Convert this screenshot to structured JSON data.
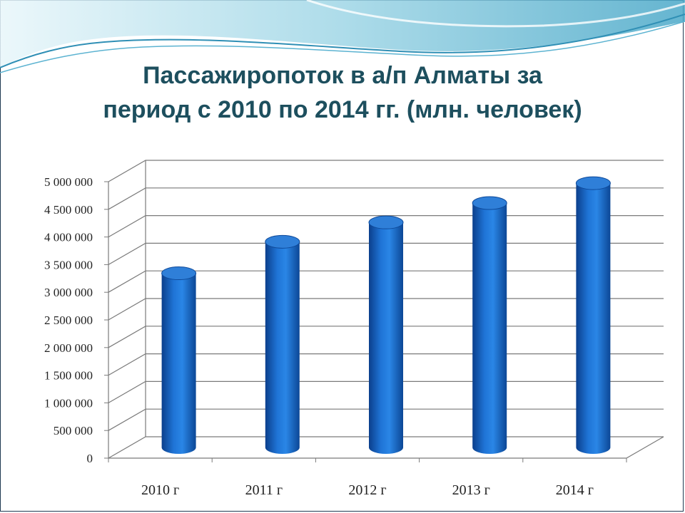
{
  "slide": {
    "title_line1": "Пассажиропоток  в а/п Алматы за",
    "title_line2": "период с 2010 по 2014 гг. (млн. человек)"
  },
  "colors": {
    "title": "#1d4f5e",
    "bar_main": "#1a66c6",
    "bar_top": "#2f7fd8",
    "grid": "#7a7a7a",
    "wave_light": "#bfe3ee",
    "wave_dark": "#3a9bc0"
  },
  "chart_data": {
    "type": "bar",
    "style": "3d-cylinder",
    "categories": [
      "2010 г",
      "2011 г",
      "2012 г",
      "2013 г",
      "2014 г"
    ],
    "series": [
      {
        "values": [
          3150000,
          3720000,
          4070000,
          4420000,
          4780000
        ]
      }
    ],
    "title": "",
    "xlabel": "",
    "ylabel": "",
    "ylim": [
      0,
      5000000
    ],
    "yticks": [
      0,
      500000,
      1000000,
      1500000,
      2000000,
      2500000,
      3000000,
      3500000,
      4000000,
      4500000,
      5000000
    ],
    "ytick_labels": [
      "0",
      "500 000",
      "1 000 000",
      "1 500 000",
      "2 000 000",
      "2 500 000",
      "3 000 000",
      "3 500 000",
      "4 000 000",
      "4 500 000",
      "5 000 000"
    ],
    "grid": true,
    "legend": "none"
  }
}
